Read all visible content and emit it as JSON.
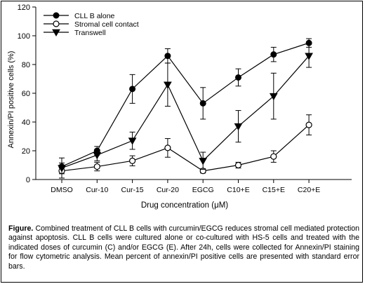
{
  "chart_data": {
    "type": "line",
    "categories": [
      "DMSO",
      "Cur-10",
      "Cur-15",
      "Cur-20",
      "EGCG",
      "C10+E",
      "C15+E",
      "C20+E"
    ],
    "xlabel": "Drug concentration (μM)",
    "ylabel": "Annexin/PI positive cells (%)",
    "ylim": [
      0,
      120
    ],
    "yticks": [
      "0",
      "20",
      "40",
      "60",
      "80",
      "100",
      "120"
    ],
    "grid": false,
    "legend_position": "top-left",
    "series": [
      {
        "name": "CLL B alone",
        "marker": "filled-circle",
        "values": [
          9,
          20,
          63,
          86,
          53,
          71,
          87,
          95
        ],
        "errors": [
          2.5,
          3,
          10,
          5,
          11,
          6,
          5,
          3
        ]
      },
      {
        "name": "Stromal cell contact",
        "marker": "open-circle",
        "values": [
          6,
          9,
          13,
          22,
          6,
          10,
          16,
          38
        ],
        "errors": [
          2,
          3,
          3.5,
          6.5,
          1.5,
          2,
          4,
          7
        ]
      },
      {
        "name": "Transwell",
        "marker": "filled-triangle-down",
        "values": [
          8,
          17,
          27,
          66,
          13,
          37,
          58,
          86
        ],
        "errors": [
          7,
          4,
          6,
          15,
          6,
          11,
          16,
          8
        ]
      }
    ]
  },
  "caption": {
    "lead": "Figure.",
    "text": " Combined treatment of CLL B cells with curcumin/EGCG reduces stromal cell mediated protection against apoptosis. CLL B cells were cultured alone or co-cultured with HS-5 cells and treated with the indicated doses of curcumin (C) and/or EGCG (E). After 24h, cells were collected for Annexin/PI staining for flow cytometric analysis. Mean percent of annexin/PI positive cells are presented with standard error bars."
  }
}
